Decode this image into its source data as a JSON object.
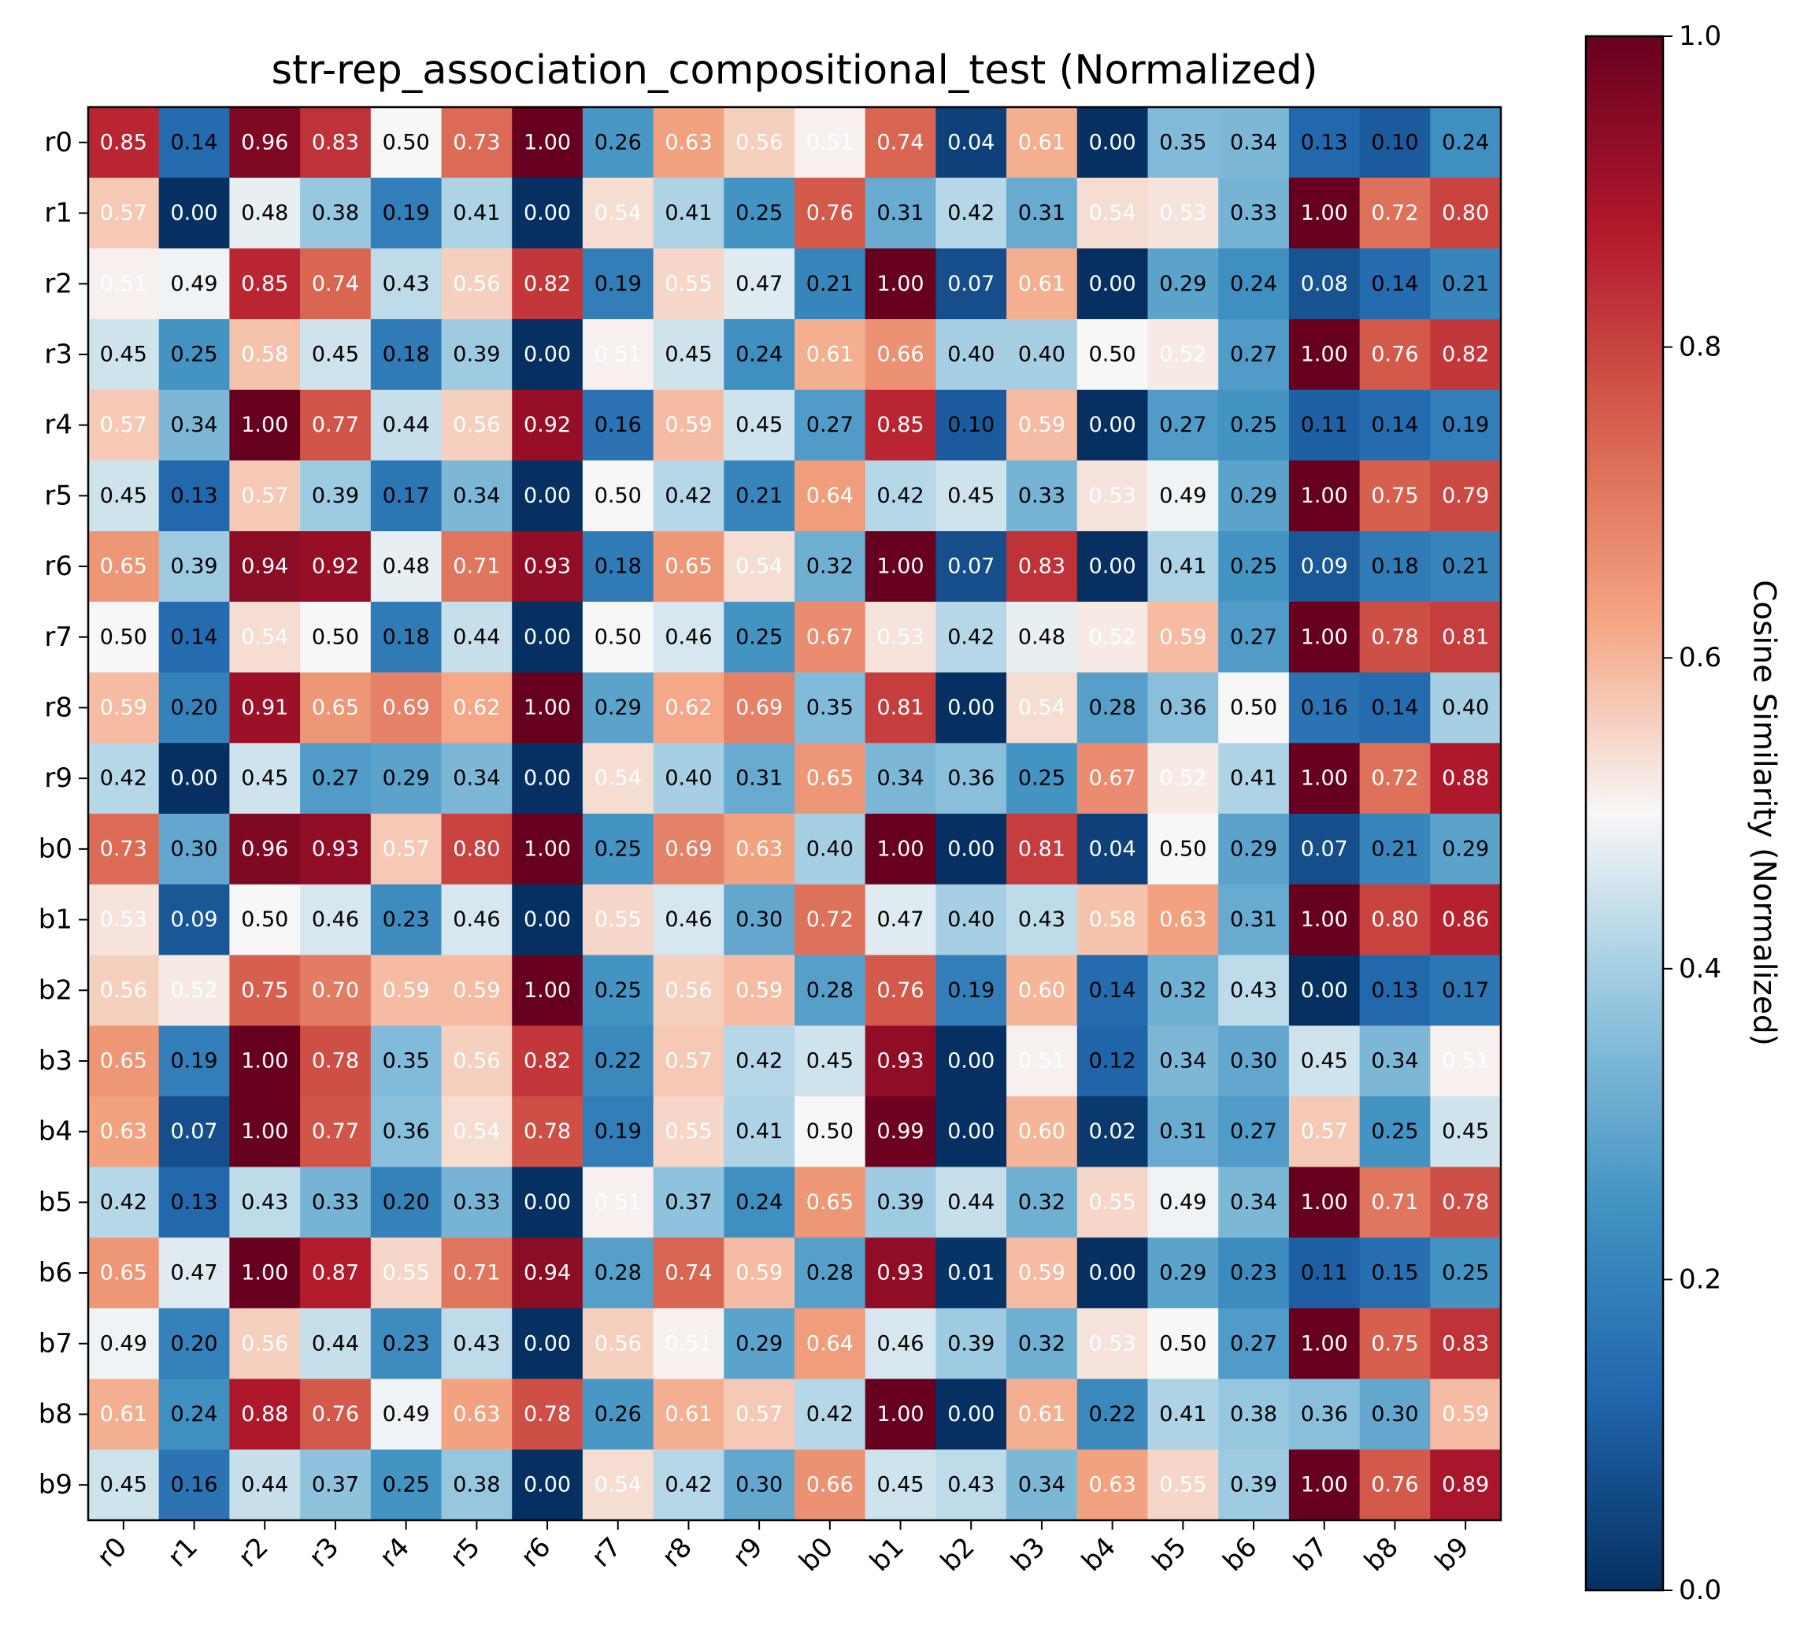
{
  "chart_data": {
    "type": "heatmap",
    "title": "str-rep_association_compositional_test (Normalized)",
    "xlabel": "",
    "ylabel": "",
    "row_labels": [
      "r0",
      "r1",
      "r2",
      "r3",
      "r4",
      "r5",
      "r6",
      "r7",
      "r8",
      "r9",
      "b0",
      "b1",
      "b2",
      "b3",
      "b4",
      "b5",
      "b6",
      "b7",
      "b8",
      "b9"
    ],
    "col_labels": [
      "r0",
      "r1",
      "r2",
      "r3",
      "r4",
      "r5",
      "r6",
      "r7",
      "r8",
      "r9",
      "b0",
      "b1",
      "b2",
      "b3",
      "b4",
      "b5",
      "b6",
      "b7",
      "b8",
      "b9"
    ],
    "values": [
      [
        0.85,
        0.14,
        0.96,
        0.83,
        0.5,
        0.73,
        1.0,
        0.26,
        0.63,
        0.56,
        0.51,
        0.74,
        0.04,
        0.61,
        0.0,
        0.35,
        0.34,
        0.13,
        0.1,
        0.24
      ],
      [
        0.57,
        0.0,
        0.48,
        0.38,
        0.19,
        0.41,
        0.0,
        0.54,
        0.41,
        0.25,
        0.76,
        0.31,
        0.42,
        0.31,
        0.54,
        0.53,
        0.33,
        1.0,
        0.72,
        0.8
      ],
      [
        0.51,
        0.49,
        0.85,
        0.74,
        0.43,
        0.56,
        0.82,
        0.19,
        0.55,
        0.47,
        0.21,
        1.0,
        0.07,
        0.61,
        0.0,
        0.29,
        0.24,
        0.08,
        0.14,
        0.21
      ],
      [
        0.45,
        0.25,
        0.58,
        0.45,
        0.18,
        0.39,
        0.0,
        0.51,
        0.45,
        0.24,
        0.61,
        0.66,
        0.4,
        0.4,
        0.5,
        0.52,
        0.27,
        1.0,
        0.76,
        0.82
      ],
      [
        0.57,
        0.34,
        1.0,
        0.77,
        0.44,
        0.56,
        0.92,
        0.16,
        0.59,
        0.45,
        0.27,
        0.85,
        0.1,
        0.59,
        0.0,
        0.27,
        0.25,
        0.11,
        0.14,
        0.19
      ],
      [
        0.45,
        0.13,
        0.57,
        0.39,
        0.17,
        0.34,
        0.0,
        0.5,
        0.42,
        0.21,
        0.64,
        0.42,
        0.45,
        0.33,
        0.53,
        0.49,
        0.29,
        1.0,
        0.75,
        0.79
      ],
      [
        0.65,
        0.39,
        0.94,
        0.92,
        0.48,
        0.71,
        0.93,
        0.18,
        0.65,
        0.54,
        0.32,
        1.0,
        0.07,
        0.83,
        0.0,
        0.41,
        0.25,
        0.09,
        0.18,
        0.21
      ],
      [
        0.5,
        0.14,
        0.54,
        0.5,
        0.18,
        0.44,
        0.0,
        0.5,
        0.46,
        0.25,
        0.67,
        0.53,
        0.42,
        0.48,
        0.52,
        0.59,
        0.27,
        1.0,
        0.78,
        0.81
      ],
      [
        0.59,
        0.2,
        0.91,
        0.65,
        0.69,
        0.62,
        1.0,
        0.29,
        0.62,
        0.69,
        0.35,
        0.81,
        0.0,
        0.54,
        0.28,
        0.36,
        0.5,
        0.16,
        0.14,
        0.4
      ],
      [
        0.42,
        0.0,
        0.45,
        0.27,
        0.29,
        0.34,
        0.0,
        0.54,
        0.4,
        0.31,
        0.65,
        0.34,
        0.36,
        0.25,
        0.67,
        0.52,
        0.41,
        1.0,
        0.72,
        0.88
      ],
      [
        0.73,
        0.3,
        0.96,
        0.93,
        0.57,
        0.8,
        1.0,
        0.25,
        0.69,
        0.63,
        0.4,
        1.0,
        0.0,
        0.81,
        0.04,
        0.5,
        0.29,
        0.07,
        0.21,
        0.29
      ],
      [
        0.53,
        0.09,
        0.5,
        0.46,
        0.23,
        0.46,
        0.0,
        0.55,
        0.46,
        0.3,
        0.72,
        0.47,
        0.4,
        0.43,
        0.58,
        0.63,
        0.31,
        1.0,
        0.8,
        0.86
      ],
      [
        0.56,
        0.52,
        0.75,
        0.7,
        0.59,
        0.59,
        1.0,
        0.25,
        0.56,
        0.59,
        0.28,
        0.76,
        0.19,
        0.6,
        0.14,
        0.32,
        0.43,
        0.0,
        0.13,
        0.17
      ],
      [
        0.65,
        0.19,
        1.0,
        0.78,
        0.35,
        0.56,
        0.82,
        0.22,
        0.57,
        0.42,
        0.45,
        0.93,
        0.0,
        0.51,
        0.12,
        0.34,
        0.3,
        0.45,
        0.34,
        0.51
      ],
      [
        0.63,
        0.07,
        1.0,
        0.77,
        0.36,
        0.54,
        0.78,
        0.19,
        0.55,
        0.41,
        0.5,
        0.99,
        0.0,
        0.6,
        0.02,
        0.31,
        0.27,
        0.57,
        0.25,
        0.45
      ],
      [
        0.42,
        0.13,
        0.43,
        0.33,
        0.2,
        0.33,
        0.0,
        0.51,
        0.37,
        0.24,
        0.65,
        0.39,
        0.44,
        0.32,
        0.55,
        0.49,
        0.34,
        1.0,
        0.71,
        0.78
      ],
      [
        0.65,
        0.47,
        1.0,
        0.87,
        0.55,
        0.71,
        0.94,
        0.28,
        0.74,
        0.59,
        0.28,
        0.93,
        0.01,
        0.59,
        0.0,
        0.29,
        0.23,
        0.11,
        0.15,
        0.25
      ],
      [
        0.49,
        0.2,
        0.56,
        0.44,
        0.23,
        0.43,
        0.0,
        0.56,
        0.51,
        0.29,
        0.64,
        0.46,
        0.39,
        0.32,
        0.53,
        0.5,
        0.27,
        1.0,
        0.75,
        0.83
      ],
      [
        0.61,
        0.24,
        0.88,
        0.76,
        0.49,
        0.63,
        0.78,
        0.26,
        0.61,
        0.57,
        0.42,
        1.0,
        0.0,
        0.61,
        0.22,
        0.41,
        0.38,
        0.36,
        0.3,
        0.59
      ],
      [
        0.45,
        0.16,
        0.44,
        0.37,
        0.25,
        0.38,
        0.0,
        0.54,
        0.42,
        0.3,
        0.66,
        0.45,
        0.43,
        0.34,
        0.63,
        0.55,
        0.39,
        1.0,
        0.76,
        0.89
      ]
    ],
    "colormap": "RdBu_r",
    "vmin": 0.0,
    "vmax": 1.0,
    "colorbar": {
      "label": "Cosine Similarity (Normalized)",
      "ticks": [
        "0.0",
        "0.2",
        "0.4",
        "0.6",
        "0.8",
        "1.0"
      ]
    }
  }
}
